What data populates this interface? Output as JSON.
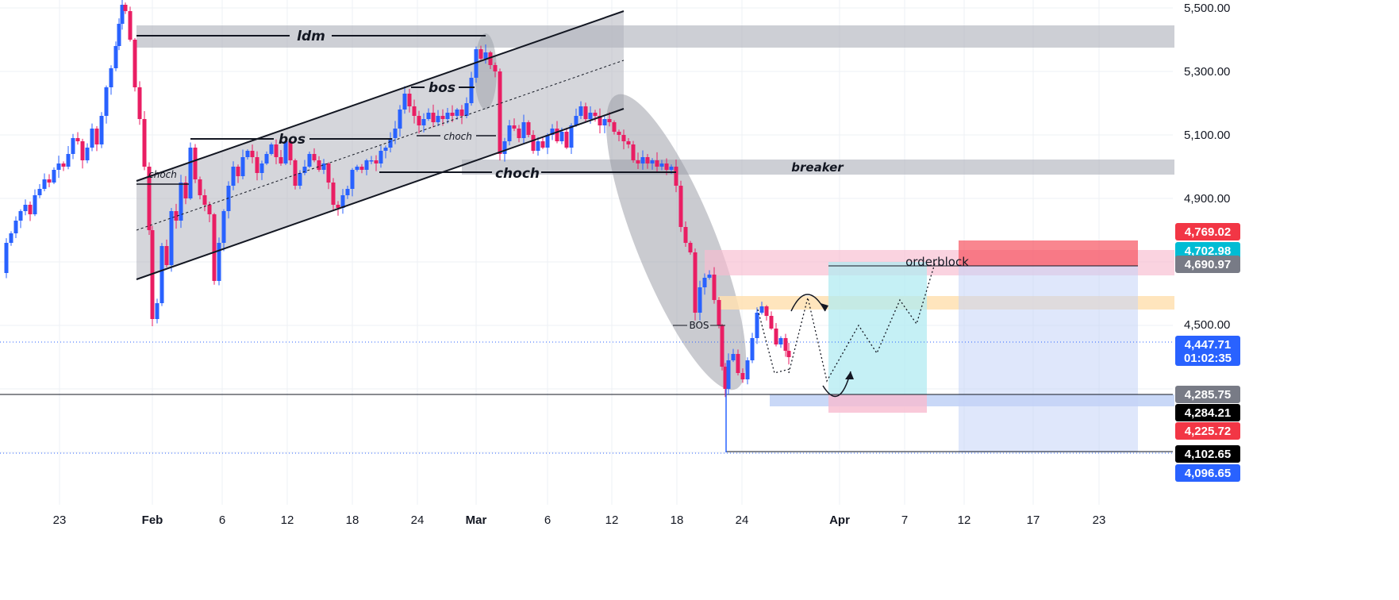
{
  "chart_data": {
    "type": "candlestick",
    "x_ticks": [
      "23",
      "Feb",
      "6",
      "12",
      "18",
      "24",
      "Mar",
      "6",
      "12",
      "18",
      "24",
      "Apr",
      "7",
      "12",
      "17",
      "23"
    ],
    "y_ticks": [
      "5,500.00",
      "5,300.00",
      "5,100.00",
      "4,900.00",
      "4,500.00"
    ],
    "ylim": [
      3950,
      5510
    ],
    "price_tags": [
      {
        "label": "4,769.02",
        "sub": "",
        "price": 4769.02,
        "color": "#f23645"
      },
      {
        "label": "4,702.98",
        "sub": "",
        "price": 4702.98,
        "color": "#00bcd4"
      },
      {
        "label": "4,690.97",
        "sub": "",
        "price": 4690.97,
        "color": "#787b86"
      },
      {
        "label": "4,447.71",
        "sub": "01:02:35",
        "price": 4447.71,
        "color": "#2962ff"
      },
      {
        "label": "4,285.75",
        "sub": "",
        "price": 4285.75,
        "color": "#787b86"
      },
      {
        "label": "4,284.21",
        "sub": "",
        "price": 4284.21,
        "color": "#000000"
      },
      {
        "label": "4,225.72",
        "sub": "",
        "price": 4225.72,
        "color": "#f23645"
      },
      {
        "label": "4,102.65",
        "sub": "",
        "price": 4102.65,
        "color": "#000000"
      },
      {
        "label": "4,096.65",
        "sub": "",
        "price": 4096.65,
        "color": "#2962ff"
      }
    ],
    "annotations": {
      "idm": "ldm",
      "bos_1": "bos",
      "bos_2": "bos",
      "choch_1": "choch",
      "choch_2": "choch",
      "choch_3": "choch",
      "breaker": "breaker",
      "bos_big": "BOS",
      "orderblock": "orderblock"
    },
    "up_color": "#2962ff",
    "down_color": "#e91e63",
    "candle_anchors": [
      [
        0,
        4665
      ],
      [
        8,
        4760
      ],
      [
        14,
        4790
      ],
      [
        20,
        4830
      ],
      [
        26,
        4860
      ],
      [
        32,
        4880
      ],
      [
        38,
        4850
      ],
      [
        44,
        4910
      ],
      [
        50,
        4930
      ],
      [
        56,
        4960
      ],
      [
        62,
        4950
      ],
      [
        68,
        4990
      ],
      [
        74,
        5010
      ],
      [
        80,
        5000
      ],
      [
        86,
        5040
      ],
      [
        92,
        5090
      ],
      [
        98,
        5080
      ],
      [
        104,
        5020
      ],
      [
        110,
        5060
      ],
      [
        116,
        5120
      ],
      [
        122,
        5070
      ],
      [
        128,
        5160
      ],
      [
        134,
        5250
      ],
      [
        140,
        5310
      ],
      [
        146,
        5380
      ],
      [
        150,
        5450
      ],
      [
        154,
        5510
      ],
      [
        158,
        5490
      ],
      [
        164,
        5400
      ],
      [
        170,
        5250
      ],
      [
        176,
        5150
      ],
      [
        182,
        5000
      ],
      [
        188,
        4800
      ],
      [
        192,
        4520
      ],
      [
        198,
        4570
      ],
      [
        204,
        4750
      ],
      [
        210,
        4690
      ],
      [
        216,
        4860
      ],
      [
        222,
        4830
      ],
      [
        228,
        4950
      ],
      [
        234,
        4900
      ],
      [
        240,
        5060
      ],
      [
        246,
        4960
      ],
      [
        252,
        4910
      ],
      [
        258,
        4880
      ],
      [
        264,
        4850
      ],
      [
        270,
        4640
      ],
      [
        276,
        4760
      ],
      [
        282,
        4860
      ],
      [
        288,
        4940
      ],
      [
        294,
        5000
      ],
      [
        300,
        4970
      ],
      [
        306,
        5030
      ],
      [
        312,
        5050
      ],
      [
        318,
        5030
      ],
      [
        324,
        4980
      ],
      [
        330,
        5010
      ],
      [
        336,
        5040
      ],
      [
        342,
        5070
      ],
      [
        348,
        5030
      ],
      [
        354,
        5010
      ],
      [
        360,
        5080
      ],
      [
        366,
        5020
      ],
      [
        372,
        4940
      ],
      [
        378,
        4980
      ],
      [
        384,
        5000
      ],
      [
        390,
        5040
      ],
      [
        396,
        5020
      ],
      [
        402,
        4990
      ],
      [
        408,
        5010
      ],
      [
        414,
        4950
      ],
      [
        420,
        4880
      ],
      [
        426,
        4870
      ],
      [
        432,
        4910
      ],
      [
        438,
        4930
      ],
      [
        444,
        4990
      ],
      [
        450,
        5000
      ],
      [
        456,
        4990
      ],
      [
        462,
        5020
      ],
      [
        468,
        5020
      ],
      [
        474,
        5010
      ],
      [
        480,
        5050
      ],
      [
        486,
        5060
      ],
      [
        492,
        5090
      ],
      [
        498,
        5120
      ],
      [
        504,
        5180
      ],
      [
        510,
        5230
      ],
      [
        516,
        5190
      ],
      [
        522,
        5160
      ],
      [
        528,
        5130
      ],
      [
        534,
        5150
      ],
      [
        540,
        5170
      ],
      [
        546,
        5140
      ],
      [
        552,
        5160
      ],
      [
        558,
        5150
      ],
      [
        564,
        5170
      ],
      [
        570,
        5160
      ],
      [
        576,
        5180
      ],
      [
        582,
        5160
      ],
      [
        588,
        5200
      ],
      [
        594,
        5280
      ],
      [
        600,
        5370
      ],
      [
        606,
        5340
      ],
      [
        612,
        5360
      ],
      [
        618,
        5320
      ],
      [
        624,
        5300
      ],
      [
        630,
        5040
      ],
      [
        636,
        5080
      ],
      [
        642,
        5130
      ],
      [
        648,
        5120
      ],
      [
        654,
        5090
      ],
      [
        660,
        5140
      ],
      [
        666,
        5100
      ],
      [
        672,
        5050
      ],
      [
        678,
        5080
      ],
      [
        684,
        5060
      ],
      [
        690,
        5100
      ],
      [
        696,
        5120
      ],
      [
        702,
        5080
      ],
      [
        708,
        5110
      ],
      [
        714,
        5060
      ],
      [
        720,
        5130
      ],
      [
        726,
        5160
      ],
      [
        732,
        5190
      ],
      [
        738,
        5150
      ],
      [
        744,
        5170
      ],
      [
        750,
        5160
      ],
      [
        756,
        5130
      ],
      [
        762,
        5150
      ],
      [
        768,
        5140
      ],
      [
        774,
        5110
      ],
      [
        780,
        5100
      ],
      [
        786,
        5080
      ],
      [
        792,
        5070
      ],
      [
        798,
        5020
      ],
      [
        804,
        5010
      ],
      [
        810,
        5030
      ],
      [
        816,
        5010
      ],
      [
        822,
        5020
      ],
      [
        828,
        5000
      ],
      [
        834,
        5010
      ],
      [
        840,
        4990
      ],
      [
        846,
        5000
      ],
      [
        852,
        4940
      ],
      [
        858,
        4810
      ],
      [
        864,
        4760
      ],
      [
        870,
        4730
      ],
      [
        876,
        4540
      ],
      [
        882,
        4620
      ],
      [
        888,
        4650
      ],
      [
        894,
        4660
      ],
      [
        900,
        4580
      ],
      [
        906,
        4500
      ],
      [
        910,
        4370
      ],
      [
        914,
        4300
      ],
      [
        918,
        4390
      ],
      [
        924,
        4410
      ],
      [
        930,
        4350
      ],
      [
        936,
        4330
      ],
      [
        942,
        4390
      ],
      [
        948,
        4460
      ],
      [
        954,
        4540
      ],
      [
        960,
        4560
      ],
      [
        966,
        4530
      ],
      [
        972,
        4490
      ],
      [
        978,
        4440
      ],
      [
        984,
        4460
      ],
      [
        990,
        4420
      ],
      [
        994,
        4400
      ]
    ]
  }
}
